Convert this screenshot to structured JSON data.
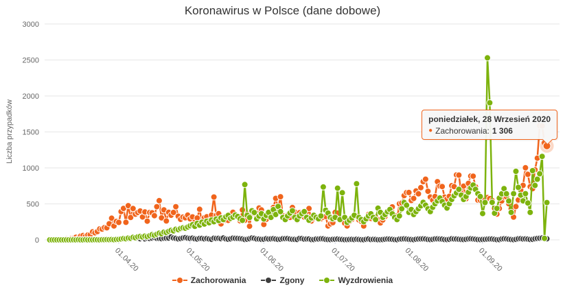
{
  "chart_data": {
    "type": "line-scatter",
    "title": "Koronawirus w Polsce (dane dobowe)",
    "ylabel": "Liczba przypadków",
    "xlabel": "",
    "ylim": [
      0,
      3000
    ],
    "y_ticks": [
      0,
      500,
      1000,
      1500,
      2000,
      2500,
      3000
    ],
    "grid": "horizontal",
    "legend_position": "bottom",
    "x_start_date": "2020-03-03",
    "x_ticks": [
      {
        "day": 29,
        "label": "01.04.20"
      },
      {
        "day": 59,
        "label": "01.05.20"
      },
      {
        "day": 90,
        "label": "01.06.20"
      },
      {
        "day": 120,
        "label": "01.07.20"
      },
      {
        "day": 151,
        "label": "01.08.20"
      },
      {
        "day": 182,
        "label": "01.09.20"
      }
    ],
    "series": [
      {
        "name": "Zachorowania",
        "color": "#f0641c",
        "values": [
          1,
          1,
          1,
          3,
          2,
          6,
          5,
          11,
          9,
          16,
          19,
          36,
          21,
          52,
          61,
          49,
          68,
          70,
          111,
          98,
          115,
          152,
          150,
          170,
          168,
          224,
          301,
          193,
          256,
          243,
          392,
          437,
          244,
          475,
          311,
          435,
          357,
          380,
          401,
          318,
          388,
          260,
          380,
          376,
          336,
          461,
          545,
          306,
          416,
          263,
          383,
          342,
          381,
          461,
          329,
          285,
          316,
          307,
          344,
          292,
          319,
          246,
          304,
          425,
          235,
          307,
          321,
          267,
          345,
          595,
          341,
          364,
          222,
          273,
          272,
          270,
          356,
          383,
          322,
          317,
          265,
          416,
          271,
          360,
          190,
          399,
          364,
          337,
          443,
          416,
          214,
          285,
          375,
          341,
          450,
          576,
          435,
          599,
          336,
          298,
          346,
          311,
          450,
          387,
          272,
          377,
          335,
          316,
          314,
          436,
          262,
          295,
          305,
          310,
          293,
          314,
          325,
          193,
          222,
          239,
          382,
          371,
          279,
          292,
          231,
          193,
          257,
          284,
          344,
          329,
          274,
          257,
          192,
          279,
          353,
          298,
          312,
          317,
          279,
          235,
          275,
          326,
          390,
          418,
          458,
          337,
          284,
          502,
          512,
          615,
          657,
          658,
          548,
          575,
          680,
          640,
          726,
          809,
          843,
          675,
          595,
          551,
          602,
          809,
          748,
          741,
          594,
          567,
          605,
          753,
          740,
          903,
          900,
          648,
          747,
          571,
          785,
          887,
          885,
          739,
          551,
          552,
          550,
          554,
          589,
          573,
          547,
          438,
          358,
          436,
          540,
          594,
          598,
          502,
          432,
          316,
          463,
          554,
          691,
          757,
          1002,
          910,
          739,
          711,
          974,
          1136,
          1587,
          1584,
          1350,
          1306
        ]
      },
      {
        "name": "Zgony",
        "color": "#3d3d3d",
        "values": [
          0,
          0,
          0,
          0,
          0,
          0,
          0,
          0,
          0,
          1,
          2,
          0,
          1,
          1,
          0,
          2,
          0,
          5,
          0,
          2,
          2,
          2,
          7,
          2,
          5,
          6,
          4,
          7,
          6,
          12,
          14,
          18,
          17,
          15,
          24,
          26,
          27,
          23,
          15,
          28,
          13,
          23,
          19,
          25,
          32,
          21,
          20,
          16,
          23,
          24,
          25,
          40,
          26,
          21,
          13,
          18,
          26,
          31,
          24,
          20,
          24,
          15,
          11,
          20,
          20,
          14,
          18,
          12,
          8,
          23,
          20,
          22,
          16,
          26,
          13,
          9,
          14,
          24,
          21,
          20,
          17,
          13,
          6,
          9,
          16,
          26,
          21,
          12,
          11,
          8,
          9,
          16,
          12,
          14,
          17,
          11,
          7,
          9,
          16,
          17,
          18,
          12,
          8,
          7,
          6,
          19,
          18,
          10,
          12,
          12,
          4,
          5,
          11,
          12,
          15,
          14,
          7,
          5,
          4,
          8,
          9,
          11,
          8,
          6,
          3,
          4,
          6,
          7,
          5,
          9,
          6,
          3,
          2,
          8,
          11,
          5,
          7,
          6,
          2,
          3,
          5,
          9,
          12,
          10,
          8,
          4,
          3,
          10,
          12,
          14,
          11,
          8,
          5,
          3,
          9,
          12,
          13,
          14,
          12,
          6,
          4,
          7,
          13,
          14,
          12,
          10,
          5,
          4,
          8,
          15,
          12,
          11,
          9,
          6,
          5,
          8,
          13,
          15,
          12,
          9,
          5,
          4,
          6,
          8,
          10,
          12,
          11,
          7,
          3,
          4,
          12,
          15,
          13,
          9,
          5,
          3,
          8,
          15,
          17,
          12,
          13,
          10,
          6,
          8,
          15,
          20,
          23,
          26,
          12,
          15
        ]
      },
      {
        "name": "Wyzdrowienia",
        "color": "#7db30d",
        "values": [
          0,
          0,
          0,
          0,
          0,
          0,
          0,
          0,
          0,
          0,
          1,
          0,
          2,
          0,
          0,
          3,
          0,
          1,
          0,
          2,
          1,
          0,
          3,
          2,
          4,
          3,
          5,
          2,
          6,
          8,
          12,
          18,
          15,
          25,
          22,
          35,
          30,
          42,
          48,
          40,
          52,
          46,
          58,
          72,
          65,
          78,
          92,
          85,
          108,
          102,
          118,
          132,
          125,
          148,
          142,
          158,
          168,
          162,
          178,
          196,
          210,
          188,
          230,
          205,
          246,
          220,
          260,
          238,
          275,
          252,
          290,
          268,
          305,
          282,
          320,
          340,
          298,
          315,
          346,
          325,
          292,
          270,
          769,
          342,
          310,
          405,
          380,
          292,
          330,
          365,
          290,
          340,
          382,
          312,
          420,
          352,
          465,
          392,
          310,
          282,
          332,
          372,
          405,
          312,
          282,
          332,
          365,
          392,
          312,
          272,
          305,
          342,
          312,
          292,
          332,
          735,
          412,
          372,
          312,
          292,
          312,
          718,
          282,
          655,
          312,
          242,
          272,
          305,
          342,
          780,
          312,
          282,
          252,
          292,
          332,
          362,
          312,
          282,
          440,
          382,
          312,
          352,
          392,
          422,
          362,
          312,
          282,
          332,
          432,
          520,
          482,
          382,
          422,
          352,
          392,
          432,
          472,
          522,
          482,
          432,
          392,
          452,
          502,
          542,
          582,
          532,
          482,
          442,
          502,
          562,
          612,
          652,
          702,
          622,
          562,
          602,
          662,
          722,
          762,
          702,
          642,
          602,
          366,
          519,
          2530,
          1905,
          521,
          370,
          437,
          580,
          640,
          712,
          640,
          540,
          382,
          642,
          952,
          730,
          622,
          542,
          642,
          512,
          382,
          962,
          756,
          843,
          919,
          1160,
          21,
          518
        ]
      }
    ]
  },
  "tooltip": {
    "title": "poniedziałek, 28 Wrzesień 2020",
    "bullet": "●",
    "series_label": "Zachorowania:",
    "value": "1 306",
    "point_index": 209,
    "point_value": 1306
  },
  "theme": {
    "grid_color": "#e6e6e6",
    "tick_color": "#ccd6eb",
    "axis_text_color": "#666666",
    "title_color": "#333333",
    "tooltip_background": "#f7f7f7",
    "tooltip_border": "#f0641c"
  }
}
